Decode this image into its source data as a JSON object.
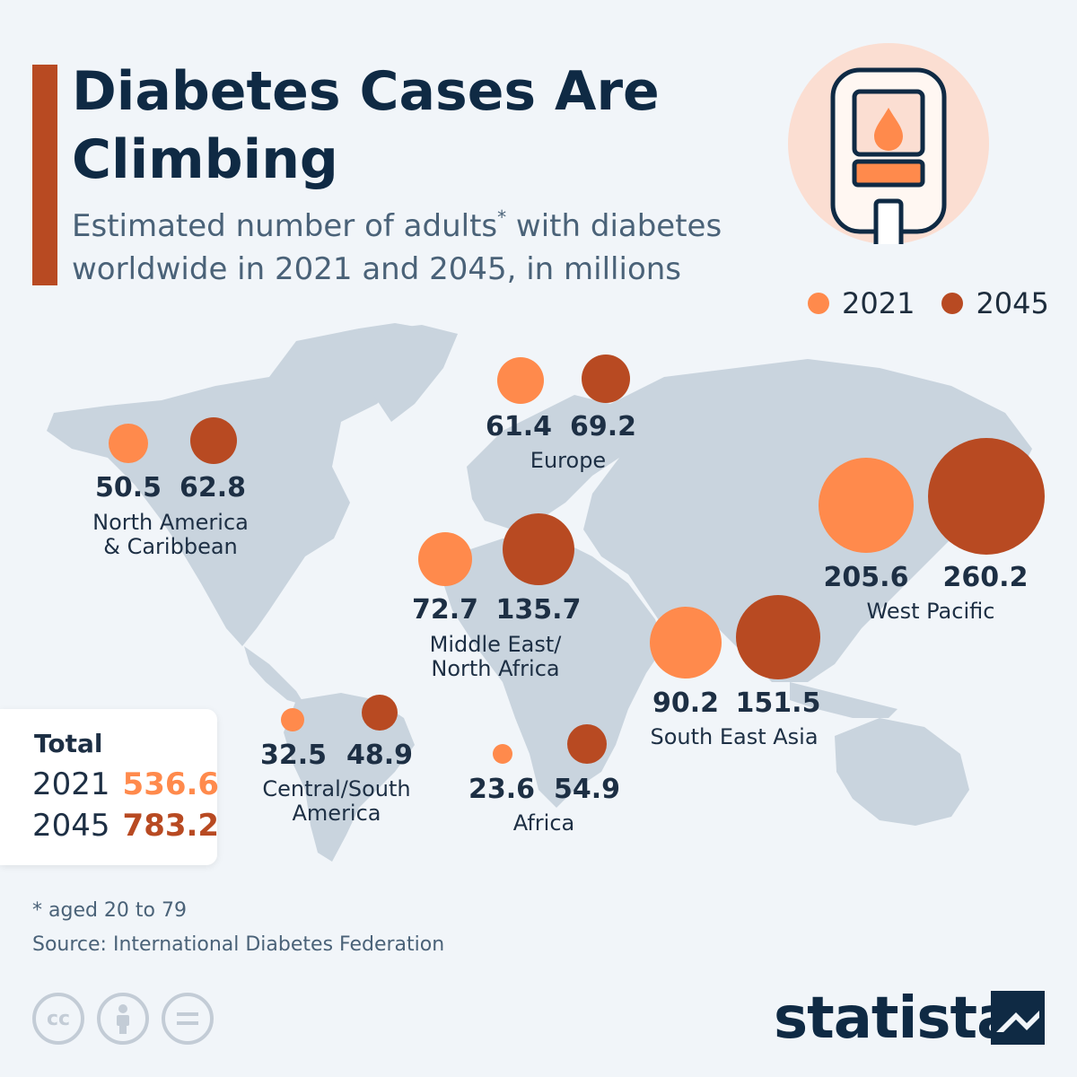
{
  "title": "Diabetes Cases Are Climbing",
  "subtitle": "Estimated number of adults",
  "subtitle_mark": "*",
  "subtitle_rest": " with diabetes worldwide in 2021 and 2045, in millions",
  "legend": [
    {
      "label": "2021",
      "color": "#ff8a4c"
    },
    {
      "label": "2045",
      "color": "#b84a22"
    }
  ],
  "chart_data": {
    "type": "bubble-map",
    "series": [
      {
        "name": "2021",
        "color": "#ff8a4c"
      },
      {
        "name": "2045",
        "color": "#b84a22"
      }
    ],
    "regions": [
      {
        "name": "North America\n& Caribbean",
        "v2021": "50.5",
        "v2045": "62.8"
      },
      {
        "name": "Europe",
        "v2021": "61.4",
        "v2045": "69.2"
      },
      {
        "name": "West Pacific",
        "v2021": "205.6",
        "v2045": "260.2"
      },
      {
        "name": "Middle East/\nNorth Africa",
        "v2021": "72.7",
        "v2045": "135.7"
      },
      {
        "name": "South East Asia",
        "v2021": "90.2",
        "v2045": "151.5"
      },
      {
        "name": "Central/South\nAmerica",
        "v2021": "32.5",
        "v2045": "48.9"
      },
      {
        "name": "Africa",
        "v2021": "23.6",
        "v2045": "54.9"
      }
    ]
  },
  "totals": {
    "title": "Total",
    "rows": [
      {
        "year": "2021",
        "value": "536.6",
        "color": "#ff8a4c"
      },
      {
        "year": "2045",
        "value": "783.2",
        "color": "#b84a22"
      }
    ]
  },
  "footnote": "* aged 20 to 79",
  "source": "Source: International Diabetes Federation",
  "license_icons": [
    "cc-icon",
    "attribution-icon",
    "no-derivatives-icon"
  ],
  "brand": "statista"
}
